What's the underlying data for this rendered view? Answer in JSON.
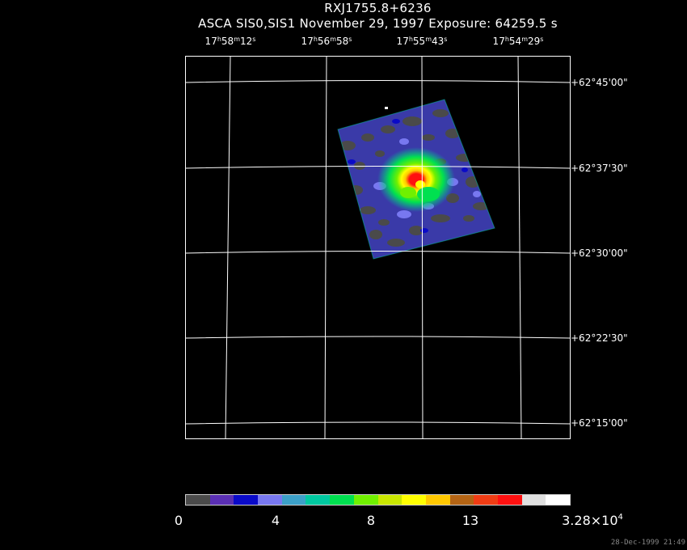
{
  "header": {
    "object": "RXJ1755.8+6236",
    "instrument_line": "ASCA SIS0,SIS1 November 29, 1997 Exposure: 64259.5 s"
  },
  "ra_ticks": [
    {
      "h": "17",
      "m": "58",
      "s": "12"
    },
    {
      "h": "17",
      "m": "56",
      "s": "58"
    },
    {
      "h": "17",
      "m": "55",
      "s": "43"
    },
    {
      "h": "17",
      "m": "54",
      "s": "29"
    }
  ],
  "dec_ticks": [
    "+62°45'00\"",
    "+62°37'30\"",
    "+62°30'00\"",
    "+62°22'30\"",
    "+62°15'00\""
  ],
  "colorbar": {
    "colors": [
      "#4a4a4a",
      "#5a2fb4",
      "#0a0ac8",
      "#7878f0",
      "#3ca0c8",
      "#00c8a0",
      "#00e050",
      "#70f000",
      "#c8e600",
      "#ffff00",
      "#ffc800",
      "#b46414",
      "#f03c14",
      "#ff1010",
      "#e0e0e0",
      "#ffffff"
    ],
    "labels": {
      "min": "0",
      "l1": "4",
      "l2": "8",
      "l3": "13",
      "max_mantissa": "3.28×10",
      "max_exp": "4"
    }
  },
  "timestamp": "28-Dec-1999 21:49"
}
